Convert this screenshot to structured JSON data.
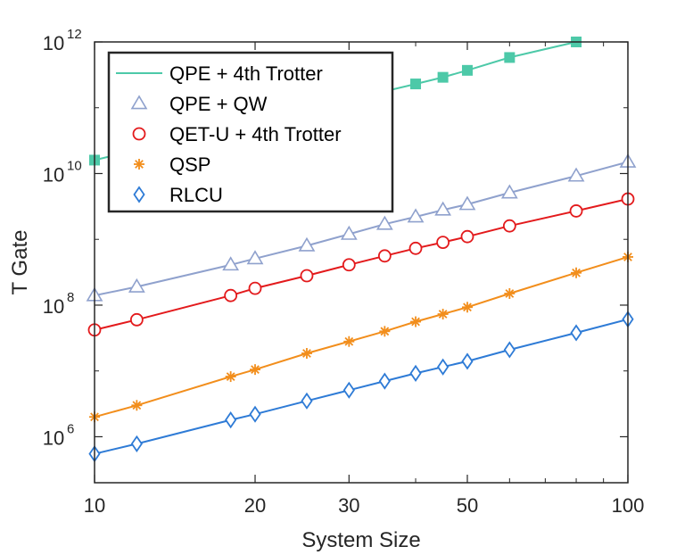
{
  "chart_data": {
    "type": "line",
    "xscale": "log",
    "yscale": "log",
    "xlabel": "System Size",
    "ylabel": "T Gate",
    "xlim": [
      10,
      100
    ],
    "ylim": [
      200000,
      1000000000000
    ],
    "xticks": [
      {
        "value": 10,
        "label": "10"
      },
      {
        "value": 20,
        "label": "20"
      },
      {
        "value": 30,
        "label": "30"
      },
      {
        "value": 50,
        "label": "50"
      },
      {
        "value": 100,
        "label": "100"
      }
    ],
    "yticks": [
      {
        "value": 1000000,
        "base": "10",
        "exp": "6"
      },
      {
        "value": 100000000,
        "base": "10",
        "exp": "8"
      },
      {
        "value": 10000000000,
        "base": "10",
        "exp": "10"
      },
      {
        "value": 1000000000000,
        "base": "10",
        "exp": "12"
      }
    ],
    "series": [
      {
        "name": "QPE + 4th Trotter",
        "color": "#4dc9a8",
        "marker": "filled-square",
        "x": [
          10,
          40,
          45,
          50,
          60,
          80
        ],
        "y": [
          16000000000,
          230000000000,
          290000000000,
          370000000000,
          580000000000,
          1000000000000
        ]
      },
      {
        "name": "QPE + QW",
        "color": "#8fa1cd",
        "marker": "triangle",
        "x": [
          10,
          12,
          18,
          20,
          25,
          30,
          35,
          40,
          45,
          50,
          60,
          80,
          100
        ],
        "y": [
          140000000,
          190000000,
          410000000,
          510000000,
          800000000,
          1200000000,
          1700000000,
          2200000000,
          2800000000,
          3400000000,
          5100000000,
          9200000000,
          15000000000
        ]
      },
      {
        "name": "QET-U + 4th Trotter",
        "color": "#e31a1c",
        "marker": "circle",
        "x": [
          10,
          12,
          18,
          20,
          25,
          30,
          35,
          40,
          45,
          50,
          60,
          80,
          100
        ],
        "y": [
          42000000,
          60000000,
          140000000,
          180000000,
          280000000,
          410000000,
          560000000,
          730000000,
          900000000,
          1100000000,
          1600000000,
          2700000000,
          4100000000
        ]
      },
      {
        "name": "QSP",
        "color": "#f28e1c",
        "marker": "asterisk",
        "x": [
          10,
          12,
          18,
          20,
          25,
          30,
          35,
          40,
          45,
          50,
          60,
          80,
          100
        ],
        "y": [
          2000000,
          3000000,
          8200000,
          10500000,
          18500000,
          28000000,
          40000000,
          56000000,
          73000000,
          93000000,
          150000000,
          310000000,
          540000000
        ]
      },
      {
        "name": "RLCU",
        "color": "#2e7bd6",
        "marker": "diamond",
        "x": [
          10,
          12,
          18,
          20,
          25,
          30,
          35,
          40,
          45,
          50,
          60,
          80,
          100
        ],
        "y": [
          550000,
          780000,
          1800000,
          2200000,
          3500000,
          5100000,
          7000000,
          9200000,
          11500000,
          14000000,
          21000000,
          38000000,
          61000000
        ]
      }
    ],
    "legend": {
      "placement": "top-left",
      "entries": [
        {
          "label": "QPE + 4th Trotter",
          "style": "line"
        },
        {
          "label": "QPE + QW",
          "style": "marker"
        },
        {
          "label": "QET-U + 4th Trotter",
          "style": "marker"
        },
        {
          "label": "QSP",
          "style": "marker"
        },
        {
          "label": "RLCU",
          "style": "marker"
        }
      ]
    }
  }
}
